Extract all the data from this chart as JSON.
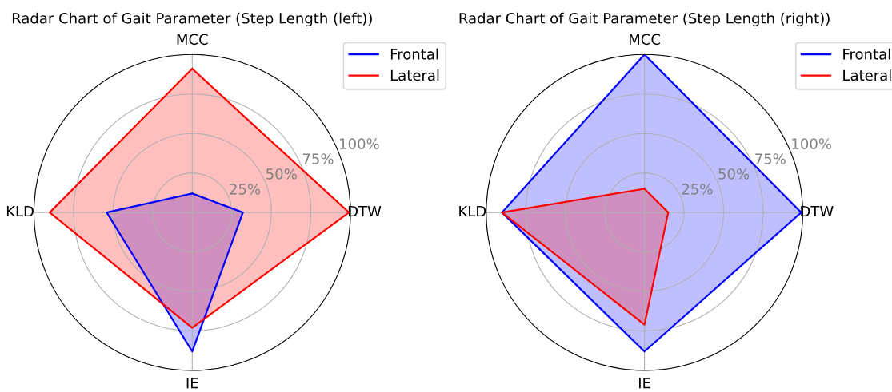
{
  "chart_data": [
    {
      "type": "radar",
      "title": "Radar Chart of Gait Parameter (Step Length (left))",
      "categories": [
        "MCC",
        "DTW",
        "IE",
        "KLD"
      ],
      "ylim": [
        0,
        100
      ],
      "yticks": [
        {
          "value": 25,
          "label": "25%"
        },
        {
          "value": 50,
          "label": "50%"
        },
        {
          "value": 75,
          "label": "75%"
        },
        {
          "value": 100,
          "label": "100%"
        }
      ],
      "grid": true,
      "legend": "top right",
      "series": [
        {
          "name": "Frontal",
          "color": "#0000ff",
          "values": [
            12,
            32,
            88,
            54
          ]
        },
        {
          "name": "Lateral",
          "color": "#ff0000",
          "values": [
            91,
            99,
            73,
            90
          ]
        }
      ]
    },
    {
      "type": "radar",
      "title": "Radar Chart of Gait Parameter (Step Length (right))",
      "categories": [
        "MCC",
        "DTW",
        "IE",
        "KLD"
      ],
      "ylim": [
        0,
        100
      ],
      "yticks": [
        {
          "value": 25,
          "label": "25%"
        },
        {
          "value": 50,
          "label": "50%"
        },
        {
          "value": 75,
          "label": "75%"
        },
        {
          "value": 100,
          "label": "100%"
        }
      ],
      "grid": true,
      "legend": "top right",
      "series": [
        {
          "name": "Frontal",
          "color": "#0000ff",
          "values": [
            100,
            99,
            88,
            90
          ]
        },
        {
          "name": "Lateral",
          "color": "#ff0000",
          "values": [
            15,
            15,
            71,
            90
          ]
        }
      ]
    }
  ]
}
